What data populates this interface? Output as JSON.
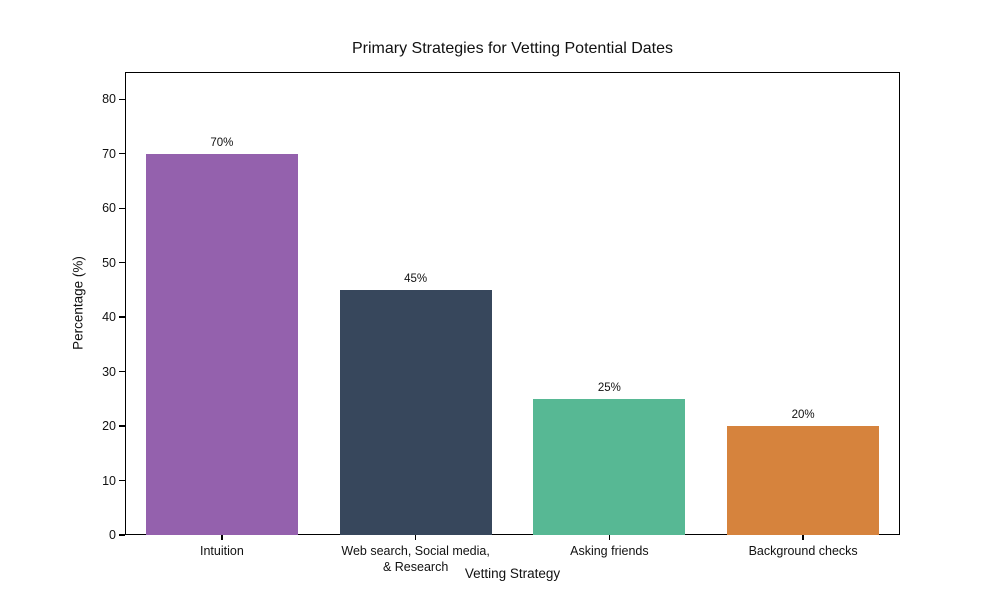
{
  "figure": {
    "background_color": "#ffffff",
    "text_color": "#111111",
    "axis_color": "#000000"
  },
  "chart_data": {
    "type": "bar",
    "title": "Primary Strategies for Vetting Potential Dates",
    "xlabel": "Vetting Strategy",
    "ylabel": "Percentage (%)",
    "categories": [
      "Intuition",
      "Web search, Social media,\n& Research",
      "Asking friends",
      "Background checks"
    ],
    "values": [
      70,
      45,
      25,
      20
    ],
    "bar_labels": [
      "70%",
      "45%",
      "25%",
      "20%"
    ],
    "bar_colors": [
      "#9461ad",
      "#37475c",
      "#57b894",
      "#d6833d"
    ],
    "yticks": [
      0,
      10,
      20,
      30,
      40,
      50,
      60,
      70,
      80
    ],
    "ylim": [
      0,
      85
    ],
    "grid": false,
    "legend": null
  }
}
